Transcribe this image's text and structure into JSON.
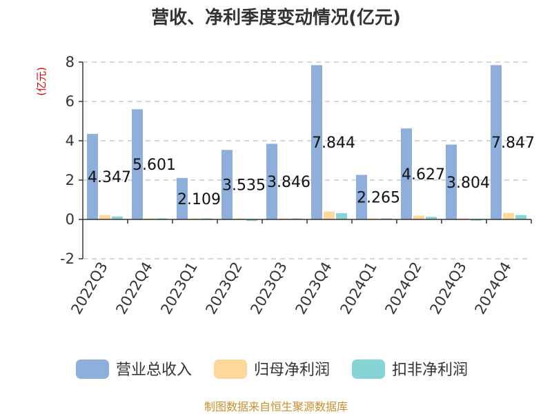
{
  "chart_data": {
    "type": "bar",
    "title": "营收、净利季度变动情况(亿元)",
    "ylabel": "(亿元)",
    "ylim": [
      -2,
      8
    ],
    "yticks": [
      -2,
      0,
      2,
      4,
      6,
      8
    ],
    "grid": true,
    "legend_position": "bottom",
    "categories": [
      "2022Q3",
      "2022Q4",
      "2023Q1",
      "2023Q2",
      "2023Q3",
      "2023Q4",
      "2024Q1",
      "2024Q2",
      "2024Q3",
      "2024Q4"
    ],
    "series": [
      {
        "name": "营业总收入",
        "color": "#8eaedc",
        "values": [
          4.347,
          5.601,
          2.109,
          3.535,
          3.846,
          7.844,
          2.265,
          4.627,
          3.804,
          7.847
        ],
        "data_labels": [
          "4.347",
          "5.601",
          "2.109",
          "3.535",
          "3.846",
          "7.844",
          "2.265",
          "4.627",
          "3.804",
          "7.847"
        ]
      },
      {
        "name": "归母净利润",
        "color": "#fdd89a",
        "values": [
          0.22,
          0.03,
          0.04,
          0.04,
          0.04,
          0.4,
          0.03,
          0.19,
          0.03,
          0.33
        ]
      },
      {
        "name": "扣非净利润",
        "color": "#86d4d6",
        "values": [
          0.15,
          0.02,
          0.03,
          -0.08,
          0.02,
          0.32,
          0.02,
          0.13,
          -0.06,
          0.22
        ]
      }
    ],
    "source": "制图数据来自恒生聚源数据库"
  }
}
